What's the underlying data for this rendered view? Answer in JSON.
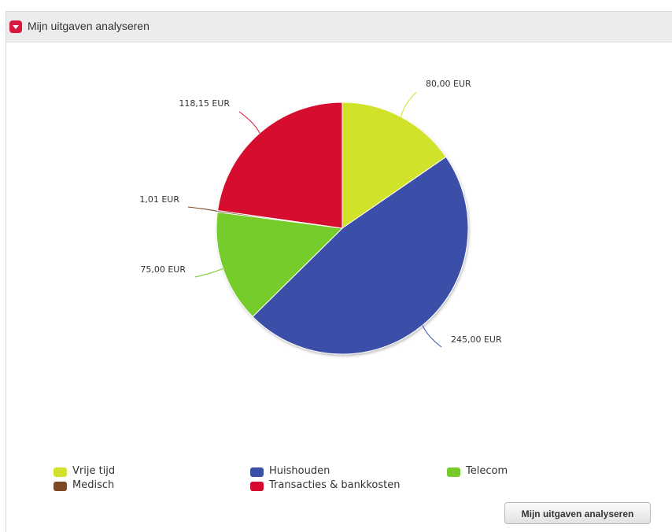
{
  "panel": {
    "title": "Mijn uitgaven analyseren",
    "toggle_icon": "chevron-down-icon"
  },
  "chart_data": {
    "type": "pie",
    "categories": [
      "Vrije tijd",
      "Huishouden",
      "Telecom",
      "Medisch",
      "Transacties & bankkosten"
    ],
    "values": [
      80.0,
      245.0,
      75.0,
      1.01,
      118.15
    ],
    "value_labels": [
      "80,00 EUR",
      "245,00 EUR",
      "75,00 EUR",
      "1,01 EUR",
      "118,15 EUR"
    ],
    "colors": [
      "#d1e22c",
      "#3a4fa8",
      "#76cc2a",
      "#7b4a25",
      "#d6082f"
    ],
    "unit": "EUR",
    "legend_position": "bottom"
  },
  "button": {
    "label": "Mijn uitgaven analyseren"
  }
}
